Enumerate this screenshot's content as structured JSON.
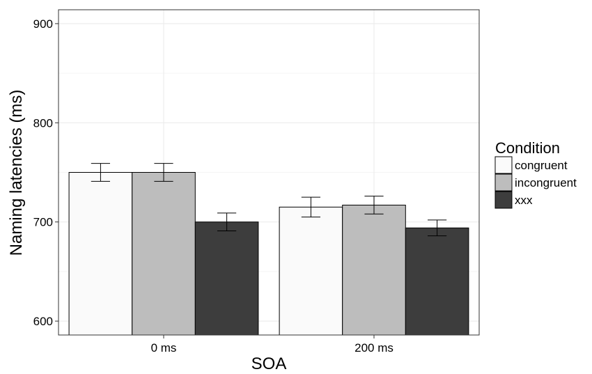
{
  "chart_data": {
    "type": "bar",
    "title": "",
    "xlabel": "SOA",
    "ylabel": "Naming latencies (ms)",
    "ylim": [
      586,
      914
    ],
    "yticks": [
      600,
      700,
      800,
      900
    ],
    "ytick_labels": [
      "600",
      "700",
      "800",
      "900"
    ],
    "categories": [
      "0 ms",
      "200 ms"
    ],
    "grid": true,
    "legend": {
      "title": "Condition",
      "placement": "right"
    },
    "series": [
      {
        "name": "congruent",
        "color": "#fafafa",
        "values": [
          750,
          715
        ],
        "error": [
          9,
          10
        ]
      },
      {
        "name": "incongruent",
        "color": "#bdbdbd",
        "values": [
          750,
          717
        ],
        "error": [
          9,
          9
        ]
      },
      {
        "name": "xxx",
        "color": "#3d3d3d",
        "values": [
          700,
          694
        ],
        "error": [
          9,
          8
        ]
      }
    ]
  }
}
